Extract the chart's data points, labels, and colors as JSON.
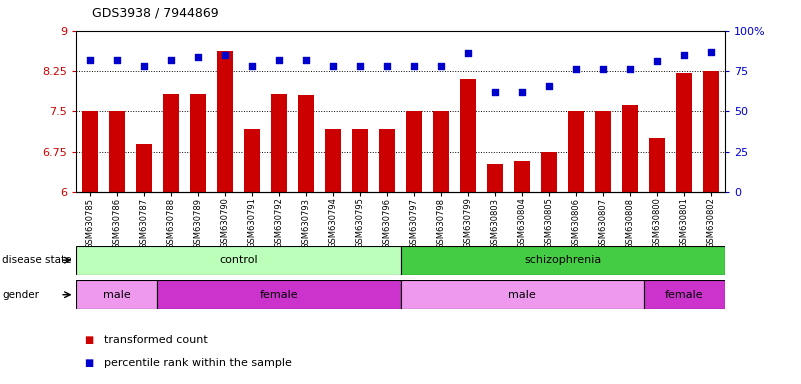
{
  "title": "GDS3938 / 7944869",
  "samples": [
    "GSM630785",
    "GSM630786",
    "GSM630787",
    "GSM630788",
    "GSM630789",
    "GSM630790",
    "GSM630791",
    "GSM630792",
    "GSM630793",
    "GSM630794",
    "GSM630795",
    "GSM630796",
    "GSM630797",
    "GSM630798",
    "GSM630799",
    "GSM630803",
    "GSM630804",
    "GSM630805",
    "GSM630806",
    "GSM630807",
    "GSM630808",
    "GSM630800",
    "GSM630801",
    "GSM630802"
  ],
  "bar_values": [
    7.5,
    7.5,
    6.9,
    7.82,
    7.82,
    8.62,
    7.18,
    7.82,
    7.8,
    7.18,
    7.18,
    7.18,
    7.5,
    7.5,
    8.1,
    6.52,
    6.58,
    6.75,
    7.5,
    7.5,
    7.62,
    7.0,
    8.22,
    8.26
  ],
  "dot_values": [
    82,
    82,
    78,
    82,
    84,
    85,
    78,
    82,
    82,
    78,
    78,
    78,
    78,
    78,
    86,
    62,
    62,
    66,
    76,
    76,
    76,
    81,
    85,
    87
  ],
  "ylim_left": [
    6,
    9
  ],
  "ylim_right": [
    0,
    100
  ],
  "yticks_left": [
    6,
    6.75,
    7.5,
    8.25,
    9
  ],
  "yticks_right": [
    0,
    25,
    50,
    75,
    100
  ],
  "bar_color": "#cc0000",
  "dot_color": "#0000cc",
  "disease_state_groups": [
    {
      "label": "control",
      "start": 0,
      "end": 12,
      "color": "#bbffbb"
    },
    {
      "label": "schizophrenia",
      "start": 12,
      "end": 24,
      "color": "#44cc44"
    }
  ],
  "gender_groups": [
    {
      "label": "male",
      "start": 0,
      "end": 3,
      "color": "#ee88ee"
    },
    {
      "label": "female",
      "start": 3,
      "end": 12,
      "color": "#cc44cc"
    },
    {
      "label": "male",
      "start": 12,
      "end": 21,
      "color": "#ee88ee"
    },
    {
      "label": "female",
      "start": 21,
      "end": 24,
      "color": "#cc44cc"
    }
  ],
  "legend_items": [
    {
      "label": "transformed count",
      "color": "#cc0000"
    },
    {
      "label": "percentile rank within the sample",
      "color": "#0000cc"
    }
  ],
  "background_color": "#ffffff"
}
